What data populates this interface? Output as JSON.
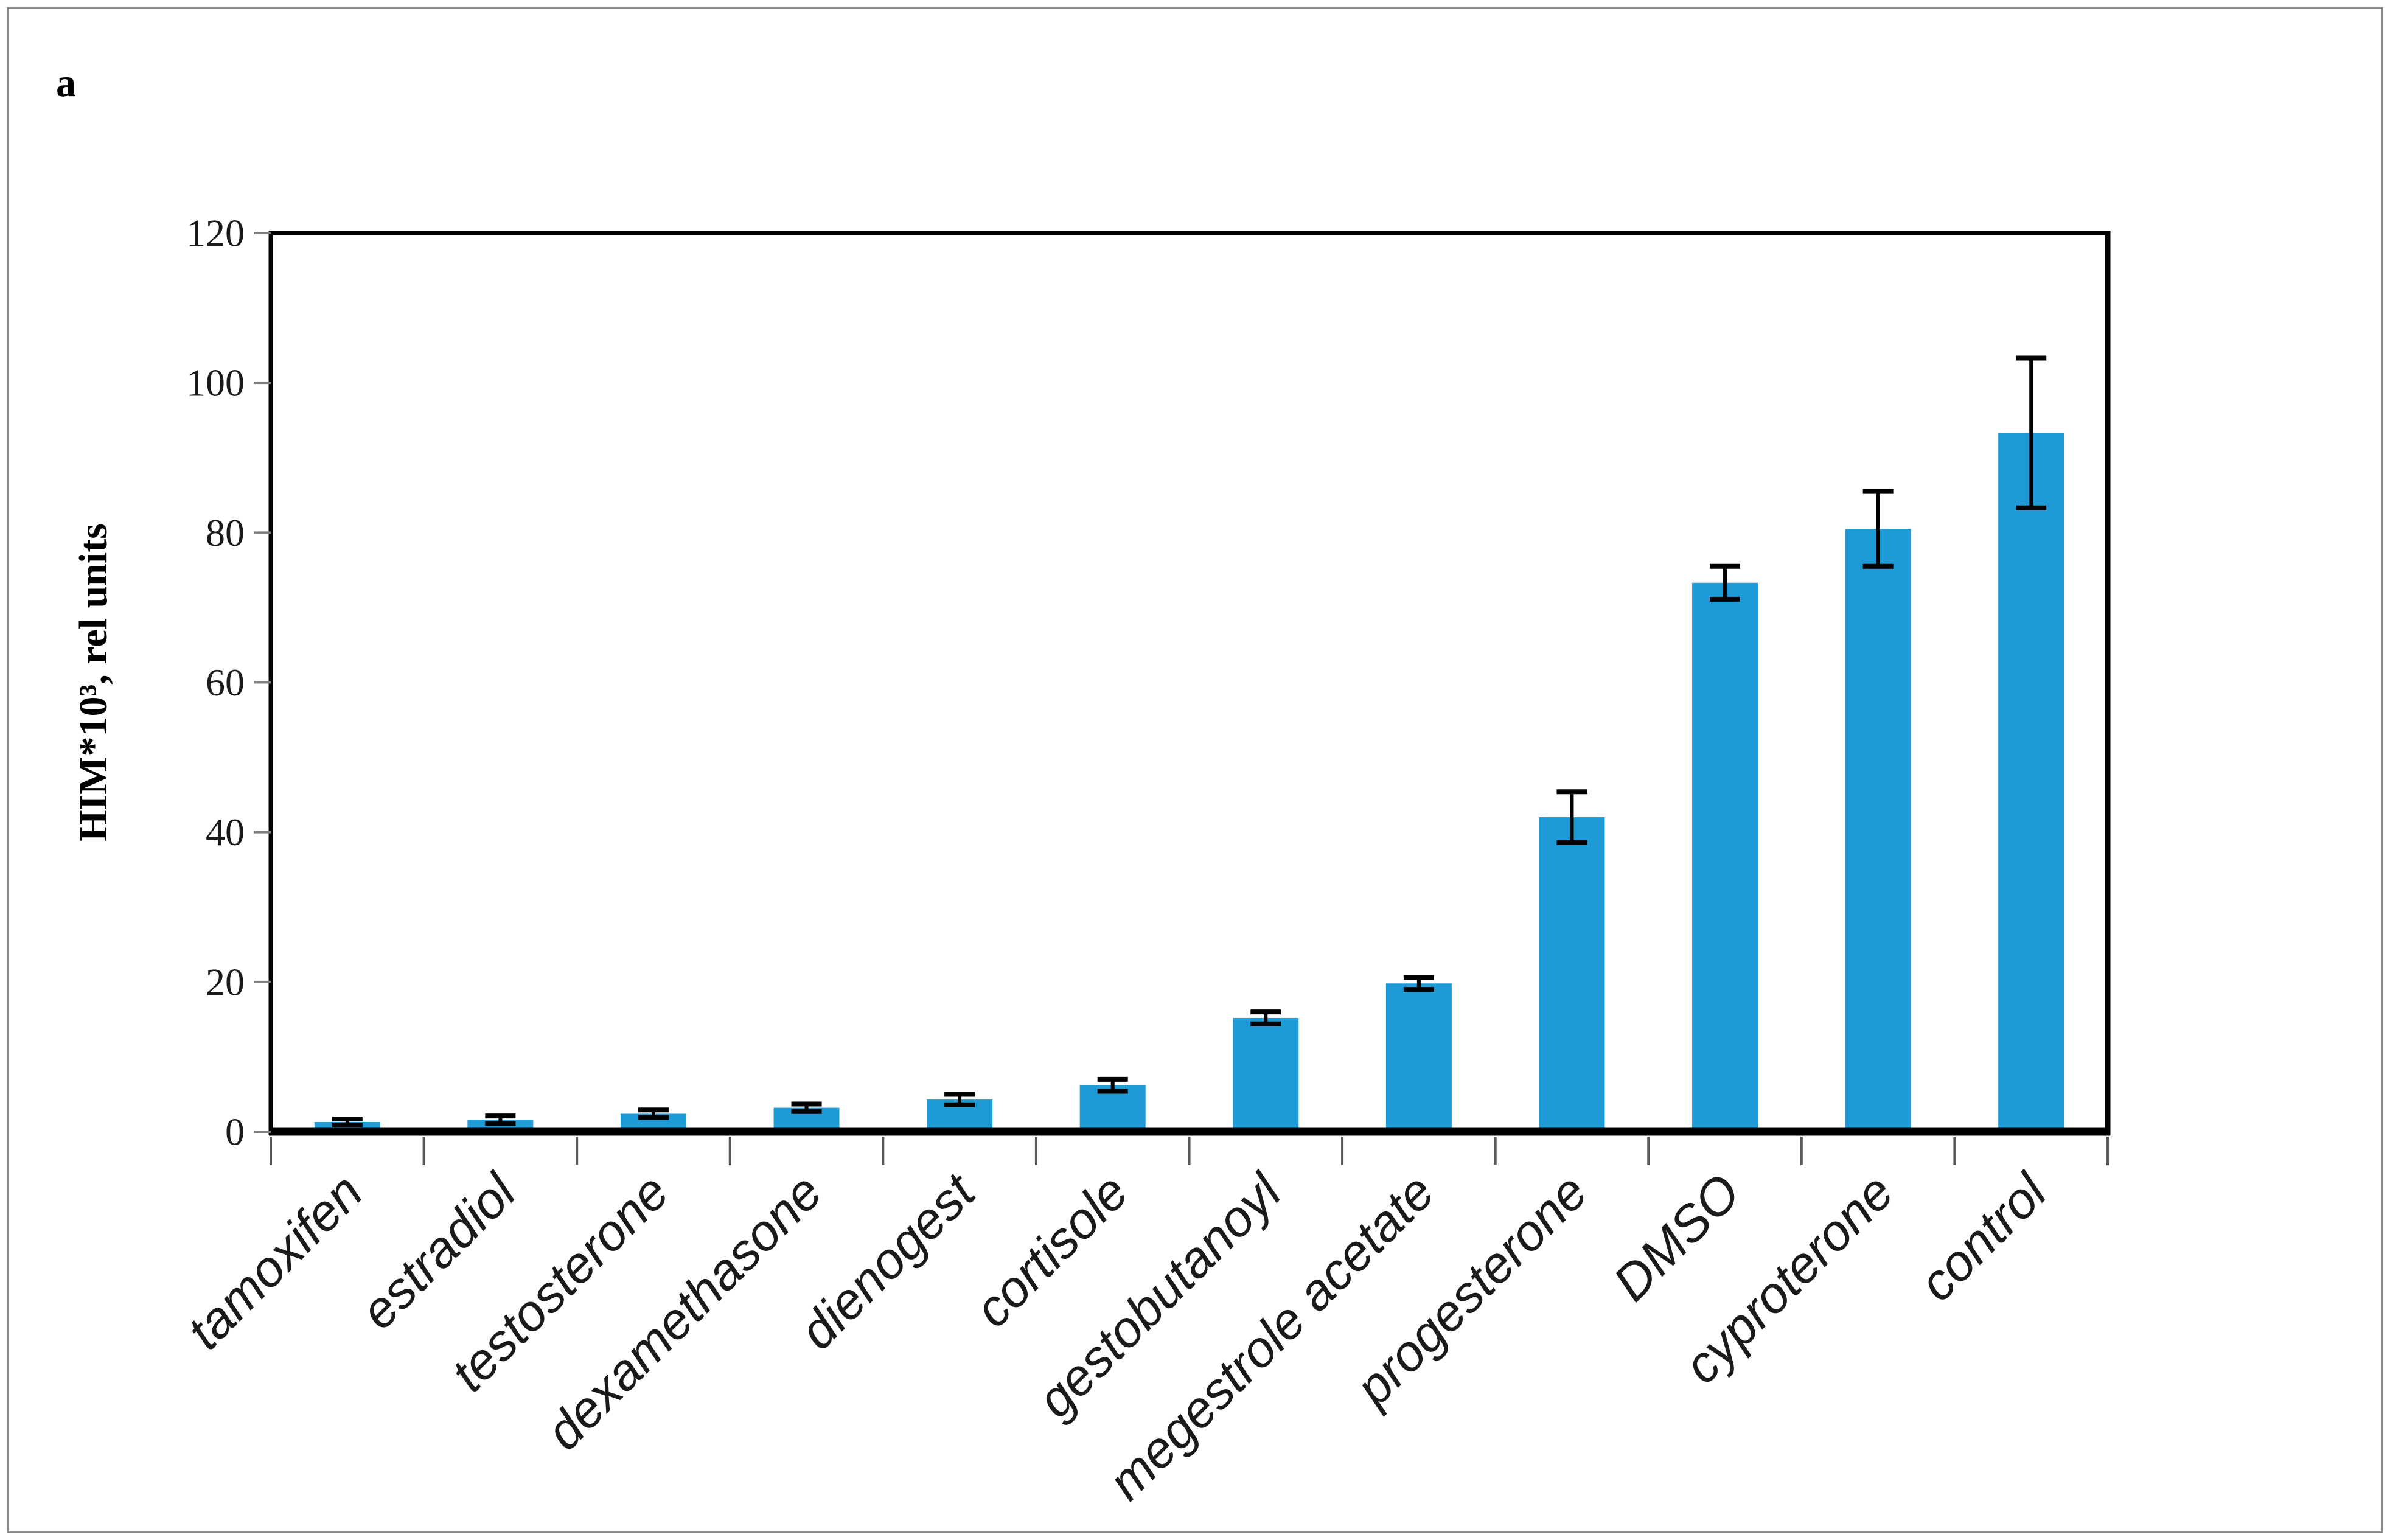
{
  "panel_label": "a",
  "colors": {
    "bar": "#1E9AD6",
    "axis": "#000000",
    "y_tick": "#7F7F7F",
    "x_tick": "#595959",
    "text": "#1A1A1A",
    "frame_border": "#8C8C8C",
    "background": "#FFFFFF"
  },
  "chart_data": {
    "type": "bar",
    "title": "",
    "xlabel": "",
    "ylabel": "HIM*10³, rel units",
    "ylim": [
      0,
      120
    ],
    "yticks": [
      0,
      20,
      40,
      60,
      80,
      100,
      120
    ],
    "grid": false,
    "legend": false,
    "error_bars": true,
    "categories": [
      "tamoxifen",
      "estradiol",
      "testosterone",
      "dexamethasone",
      "dienogest",
      "cortisole",
      "gestobutanoyl",
      "megestrole acetate",
      "progesterone",
      "DMSO",
      "cyproterone",
      "control"
    ],
    "values": [
      1.3,
      1.6,
      2.4,
      3.2,
      4.3,
      6.2,
      15.2,
      19.8,
      42,
      73.3,
      80.5,
      93.3
    ],
    "errors": [
      0.4,
      0.5,
      0.5,
      0.5,
      0.7,
      0.8,
      0.8,
      0.8,
      3.4,
      2.2,
      5,
      10
    ]
  }
}
